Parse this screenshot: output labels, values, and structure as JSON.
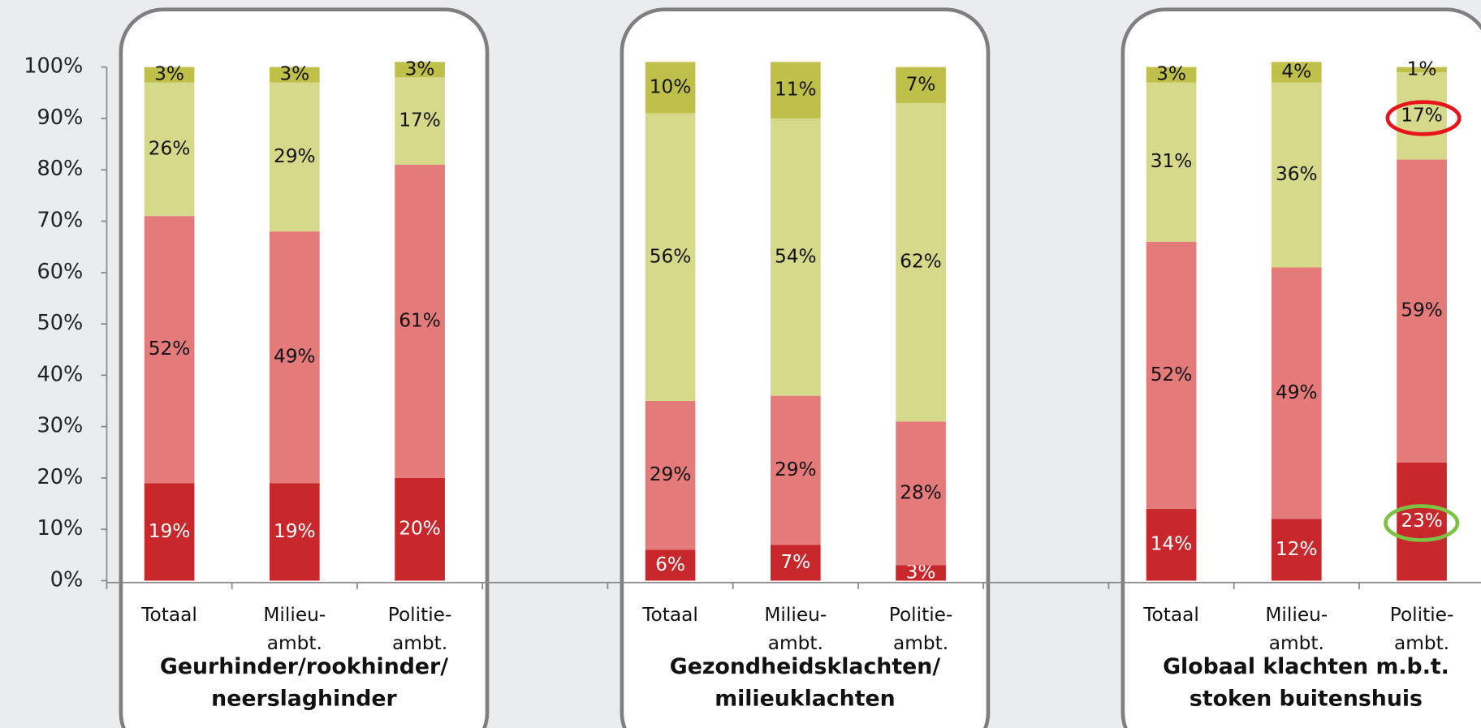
{
  "chart_data": {
    "type": "stacked_bar",
    "categories": [
      [
        "Totaal"
      ],
      [
        "Milieu-",
        "ambt."
      ],
      [
        "Politie-",
        "ambt."
      ],
      [
        "Totaal"
      ],
      [
        "Milieu-",
        "ambt."
      ],
      [
        "Politie-",
        "ambt."
      ],
      [
        "Totaal"
      ],
      [
        "Milieu-",
        "ambt."
      ],
      [
        "Politie-",
        "ambt."
      ]
    ],
    "groups": [
      {
        "lines": [
          "Geurhinder/rookhinder/",
          "neerslaghinder"
        ],
        "size": 3
      },
      {
        "lines": [
          "Gezondheidsklachten/",
          "milieuklachten"
        ],
        "size": 3
      },
      {
        "lines": [
          "Globaal klachten m.b.t.",
          "stoken buitenshuis"
        ],
        "size": 3
      }
    ],
    "series": [
      {
        "color": "#c8282c",
        "label_color": "#ffffff",
        "values": [
          19,
          19,
          20,
          6,
          7,
          3,
          14,
          12,
          23
        ],
        "value_labels": [
          "19%",
          "19%",
          "20%",
          "6%",
          "7%",
          "3%",
          "14%",
          "12%",
          "23%"
        ]
      },
      {
        "color": "#e47a7a",
        "label_color": "#111111",
        "values": [
          52,
          49,
          61,
          29,
          29,
          28,
          52,
          49,
          59
        ],
        "value_labels": [
          "52%",
          "49%",
          "61%",
          "29%",
          "29%",
          "28%",
          "52%",
          "49%",
          "59%"
        ]
      },
      {
        "color": "#d6d88a",
        "label_color": "#111111",
        "values": [
          26,
          29,
          17,
          56,
          54,
          62,
          31,
          36,
          17
        ],
        "value_labels": [
          "26%",
          "29%",
          "17%",
          "56%",
          "54%",
          "62%",
          "31%",
          "36%",
          "17%"
        ]
      },
      {
        "color": "#bfc04a",
        "label_color": "#111111",
        "values": [
          3,
          3,
          3,
          10,
          11,
          7,
          3,
          4,
          1
        ],
        "value_labels": [
          "3%",
          "3%",
          "3%",
          "10%",
          "11%",
          "7%",
          "3%",
          "4%",
          "1%"
        ]
      }
    ],
    "ylim": [
      0,
      100
    ],
    "yticks": [
      {
        "value": 0,
        "label": "0%"
      },
      {
        "value": 10,
        "label": "10%"
      },
      {
        "value": 20,
        "label": "20%"
      },
      {
        "value": 30,
        "label": "30%"
      },
      {
        "value": 40,
        "label": "40%"
      },
      {
        "value": 50,
        "label": "50%"
      },
      {
        "value": 60,
        "label": "60%"
      },
      {
        "value": 70,
        "label": "70%"
      },
      {
        "value": 80,
        "label": "80%"
      },
      {
        "value": 90,
        "label": "90%"
      },
      {
        "value": 100,
        "label": "100%"
      }
    ]
  }
}
